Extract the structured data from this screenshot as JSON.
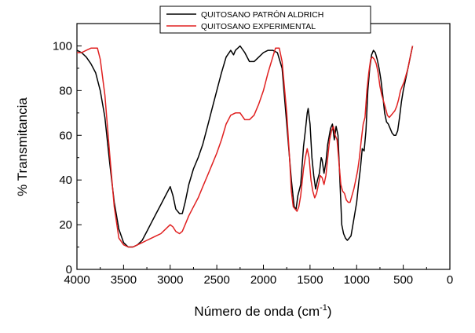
{
  "chart_data": {
    "type": "line",
    "title": "",
    "xlabel": "Número de onda (cm",
    "xlabel_sup": "-1",
    "xlabel_suffix": ")",
    "ylabel": "% Transmitancia",
    "xlim": [
      4000,
      0
    ],
    "ylim": [
      0,
      110
    ],
    "x_ticks": [
      4000,
      3500,
      3000,
      2500,
      2000,
      1500,
      1000,
      500,
      0
    ],
    "y_ticks": [
      0,
      20,
      40,
      60,
      80,
      100
    ],
    "grid": false,
    "legend_position": "top-center",
    "series": [
      {
        "name": "QUITOSANO PATRÓN ALDRICH",
        "color": "#000000",
        "points": [
          [
            4000,
            98
          ],
          [
            3950,
            97
          ],
          [
            3900,
            95
          ],
          [
            3850,
            92
          ],
          [
            3800,
            88
          ],
          [
            3750,
            80
          ],
          [
            3700,
            68
          ],
          [
            3650,
            48
          ],
          [
            3600,
            30
          ],
          [
            3550,
            18
          ],
          [
            3500,
            12
          ],
          [
            3450,
            10
          ],
          [
            3400,
            10
          ],
          [
            3350,
            11
          ],
          [
            3300,
            13
          ],
          [
            3250,
            17
          ],
          [
            3200,
            21
          ],
          [
            3150,
            25
          ],
          [
            3100,
            29
          ],
          [
            3050,
            33
          ],
          [
            3000,
            37
          ],
          [
            2970,
            33
          ],
          [
            2940,
            27
          ],
          [
            2900,
            25
          ],
          [
            2870,
            25
          ],
          [
            2840,
            30
          ],
          [
            2800,
            38
          ],
          [
            2750,
            45
          ],
          [
            2700,
            50
          ],
          [
            2650,
            56
          ],
          [
            2600,
            64
          ],
          [
            2550,
            72
          ],
          [
            2500,
            80
          ],
          [
            2450,
            88
          ],
          [
            2400,
            95
          ],
          [
            2350,
            98
          ],
          [
            2320,
            96
          ],
          [
            2300,
            98
          ],
          [
            2250,
            100
          ],
          [
            2200,
            97
          ],
          [
            2150,
            93
          ],
          [
            2100,
            93
          ],
          [
            2050,
            95
          ],
          [
            2000,
            97
          ],
          [
            1950,
            98
          ],
          [
            1900,
            98
          ],
          [
            1850,
            97
          ],
          [
            1800,
            90
          ],
          [
            1750,
            65
          ],
          [
            1700,
            40
          ],
          [
            1670,
            28
          ],
          [
            1650,
            27
          ],
          [
            1630,
            33
          ],
          [
            1600,
            38
          ],
          [
            1570,
            55
          ],
          [
            1550,
            62
          ],
          [
            1530,
            70
          ],
          [
            1520,
            72
          ],
          [
            1500,
            65
          ],
          [
            1480,
            50
          ],
          [
            1460,
            42
          ],
          [
            1440,
            36
          ],
          [
            1420,
            40
          ],
          [
            1400,
            43
          ],
          [
            1380,
            50
          ],
          [
            1370,
            49
          ],
          [
            1350,
            43
          ],
          [
            1330,
            48
          ],
          [
            1310,
            56
          ],
          [
            1280,
            63
          ],
          [
            1260,
            65
          ],
          [
            1240,
            58
          ],
          [
            1220,
            64
          ],
          [
            1200,
            60
          ],
          [
            1180,
            40
          ],
          [
            1160,
            20
          ],
          [
            1140,
            16
          ],
          [
            1120,
            14
          ],
          [
            1100,
            13
          ],
          [
            1080,
            14
          ],
          [
            1060,
            15
          ],
          [
            1040,
            20
          ],
          [
            1020,
            25
          ],
          [
            1000,
            30
          ],
          [
            980,
            38
          ],
          [
            960,
            45
          ],
          [
            940,
            54
          ],
          [
            920,
            53
          ],
          [
            900,
            62
          ],
          [
            880,
            80
          ],
          [
            860,
            90
          ],
          [
            840,
            96
          ],
          [
            820,
            98
          ],
          [
            800,
            97
          ],
          [
            780,
            94
          ],
          [
            760,
            90
          ],
          [
            740,
            85
          ],
          [
            720,
            78
          ],
          [
            700,
            70
          ],
          [
            680,
            66
          ],
          [
            660,
            65
          ],
          [
            640,
            63
          ],
          [
            620,
            61
          ],
          [
            600,
            60
          ],
          [
            580,
            60
          ],
          [
            560,
            62
          ],
          [
            540,
            68
          ],
          [
            520,
            75
          ],
          [
            500,
            80
          ],
          [
            480,
            84
          ],
          [
            460,
            88
          ],
          [
            440,
            92
          ],
          [
            420,
            96
          ],
          [
            400,
            100
          ]
        ]
      },
      {
        "name": "QUITOSANO EXPERIMENTAL",
        "color": "#e02020",
        "points": [
          [
            4000,
            97
          ],
          [
            3950,
            97
          ],
          [
            3900,
            98
          ],
          [
            3850,
            99
          ],
          [
            3800,
            99
          ],
          [
            3780,
            99
          ],
          [
            3750,
            94
          ],
          [
            3700,
            78
          ],
          [
            3650,
            52
          ],
          [
            3600,
            28
          ],
          [
            3550,
            14
          ],
          [
            3500,
            11
          ],
          [
            3450,
            10
          ],
          [
            3400,
            10
          ],
          [
            3350,
            11
          ],
          [
            3300,
            12
          ],
          [
            3250,
            13
          ],
          [
            3200,
            14
          ],
          [
            3150,
            15
          ],
          [
            3100,
            16
          ],
          [
            3050,
            18
          ],
          [
            3000,
            20
          ],
          [
            2970,
            19
          ],
          [
            2940,
            17
          ],
          [
            2900,
            16
          ],
          [
            2870,
            17
          ],
          [
            2840,
            20
          ],
          [
            2800,
            24
          ],
          [
            2750,
            28
          ],
          [
            2700,
            32
          ],
          [
            2650,
            37
          ],
          [
            2600,
            42
          ],
          [
            2550,
            47
          ],
          [
            2500,
            52
          ],
          [
            2450,
            58
          ],
          [
            2400,
            65
          ],
          [
            2350,
            69
          ],
          [
            2300,
            70
          ],
          [
            2250,
            70
          ],
          [
            2200,
            67
          ],
          [
            2150,
            67
          ],
          [
            2100,
            69
          ],
          [
            2050,
            74
          ],
          [
            2000,
            80
          ],
          [
            1950,
            88
          ],
          [
            1900,
            95
          ],
          [
            1870,
            99
          ],
          [
            1850,
            99
          ],
          [
            1830,
            99
          ],
          [
            1800,
            93
          ],
          [
            1750,
            70
          ],
          [
            1720,
            50
          ],
          [
            1700,
            35
          ],
          [
            1680,
            28
          ],
          [
            1660,
            27
          ],
          [
            1640,
            26
          ],
          [
            1620,
            28
          ],
          [
            1600,
            33
          ],
          [
            1570,
            45
          ],
          [
            1550,
            50
          ],
          [
            1530,
            54
          ],
          [
            1510,
            50
          ],
          [
            1490,
            40
          ],
          [
            1470,
            35
          ],
          [
            1450,
            32
          ],
          [
            1430,
            34
          ],
          [
            1410,
            38
          ],
          [
            1390,
            42
          ],
          [
            1370,
            41
          ],
          [
            1350,
            38
          ],
          [
            1330,
            42
          ],
          [
            1310,
            50
          ],
          [
            1290,
            58
          ],
          [
            1270,
            62
          ],
          [
            1250,
            64
          ],
          [
            1230,
            60
          ],
          [
            1210,
            58
          ],
          [
            1190,
            48
          ],
          [
            1170,
            38
          ],
          [
            1150,
            35
          ],
          [
            1130,
            34
          ],
          [
            1110,
            31
          ],
          [
            1090,
            30
          ],
          [
            1070,
            30
          ],
          [
            1050,
            33
          ],
          [
            1030,
            36
          ],
          [
            1010,
            40
          ],
          [
            990,
            44
          ],
          [
            970,
            50
          ],
          [
            950,
            58
          ],
          [
            930,
            65
          ],
          [
            910,
            68
          ],
          [
            890,
            80
          ],
          [
            870,
            88
          ],
          [
            850,
            94
          ],
          [
            830,
            95
          ],
          [
            810,
            94
          ],
          [
            790,
            92
          ],
          [
            770,
            88
          ],
          [
            750,
            82
          ],
          [
            730,
            78
          ],
          [
            710,
            75
          ],
          [
            690,
            72
          ],
          [
            670,
            69
          ],
          [
            650,
            68
          ],
          [
            630,
            69
          ],
          [
            610,
            70
          ],
          [
            590,
            71
          ],
          [
            570,
            73
          ],
          [
            550,
            76
          ],
          [
            530,
            80
          ],
          [
            510,
            82
          ],
          [
            490,
            84
          ],
          [
            470,
            87
          ],
          [
            450,
            90
          ],
          [
            430,
            94
          ],
          [
            410,
            98
          ],
          [
            400,
            100
          ]
        ]
      }
    ]
  }
}
